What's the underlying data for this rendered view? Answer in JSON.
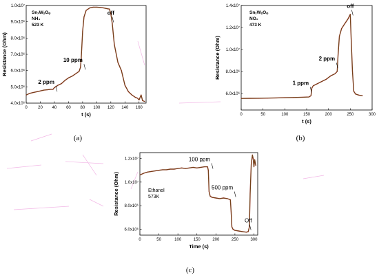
{
  "chart_data": [
    {
      "type": "line",
      "panel": "(a)",
      "info": [
        "SnₓWᵧOᵩ",
        "NH₃",
        "523 K"
      ],
      "xlabel": "t (s)",
      "ylabel": "Resistance (Ohm)",
      "xlim": [
        0,
        170
      ],
      "ylim": [
        4000000,
        10000000
      ],
      "xticks": [
        0,
        20,
        40,
        60,
        80,
        100,
        120,
        140,
        160
      ],
      "xtick_labels": [
        "0",
        "20",
        "40",
        "60",
        "80",
        "100",
        "120",
        "140",
        "160"
      ],
      "yticks": [
        4000000,
        5000000,
        6000000,
        7000000,
        8000000,
        9000000,
        10000000
      ],
      "ytick_labels": [
        "4.0x10⁶",
        "5.0x10⁶",
        "6.0x10⁶",
        "7.0x10⁶",
        "8.0x10⁶",
        "9.0x10⁶",
        "1.0x10⁷"
      ],
      "annotations": [
        {
          "text": "2 ppm",
          "x": 40,
          "y": 5050000
        },
        {
          "text": "10 ppm",
          "x": 80,
          "y": 6400000
        },
        {
          "text": "off",
          "x": 120,
          "y": 9300000
        }
      ],
      "series": [
        {
          "x": [
            0,
            5,
            10,
            15,
            20,
            25,
            30,
            35,
            38,
            40,
            45,
            50,
            55,
            60,
            65,
            70,
            75,
            77,
            78,
            80,
            82,
            85,
            90,
            95,
            100,
            105,
            110,
            115,
            118,
            120,
            122,
            125,
            130,
            135,
            140,
            145,
            150,
            155,
            158,
            160,
            163,
            165,
            168
          ],
          "y": [
            4500000,
            4600000,
            4650000,
            4700000,
            4750000,
            4800000,
            4820000,
            4850000,
            4850000,
            4950000,
            5100000,
            5200000,
            5400000,
            5550000,
            5650000,
            5800000,
            5950000,
            6200000,
            6700000,
            8400000,
            9300000,
            9700000,
            9850000,
            9900000,
            9900000,
            9880000,
            9850000,
            9800000,
            9780000,
            9500000,
            8900000,
            7600000,
            6500000,
            6000000,
            5100000,
            4700000,
            4500000,
            4350000,
            4300000,
            4200000,
            4500000,
            4150000,
            4100000
          ]
        }
      ]
    },
    {
      "type": "line",
      "panel": "(b)",
      "info": [
        "SnₓWᵧOᵩ",
        "NO₂",
        "473 K"
      ],
      "xlabel": "t (s)",
      "ylabel": "Resistance (Ohm)",
      "xlim": [
        0,
        300
      ],
      "ylim": [
        4500000,
        14000000
      ],
      "xticks": [
        0,
        50,
        100,
        150,
        200,
        250,
        300
      ],
      "xtick_labels": [
        "0",
        "50",
        "100",
        "150",
        "200",
        "250",
        "300"
      ],
      "yticks": [
        6000000,
        8000000,
        10000000,
        12000000,
        14000000
      ],
      "ytick_labels": [
        "6.0x10⁶",
        "8.0x10⁶",
        "1.0x10⁷",
        "1.2x10⁷",
        "1.4x10⁷"
      ],
      "annotations": [
        {
          "text": "1 ppm",
          "x": 155,
          "y": 6600000
        },
        {
          "text": "2 ppm",
          "x": 215,
          "y": 8800000
        },
        {
          "text": "off",
          "x": 250,
          "y": 13600000
        }
      ],
      "series": [
        {
          "x": [
            0,
            20,
            40,
            60,
            80,
            100,
            120,
            140,
            155,
            160,
            162,
            165,
            175,
            185,
            195,
            205,
            215,
            220,
            222,
            225,
            230,
            235,
            240,
            245,
            250,
            252,
            255,
            258,
            262,
            270,
            278
          ],
          "y": [
            5550000,
            5560000,
            5570000,
            5580000,
            5600000,
            5620000,
            5640000,
            5660000,
            5680000,
            5800000,
            6500000,
            6700000,
            6900000,
            7100000,
            7300000,
            7600000,
            7800000,
            8000000,
            9500000,
            11200000,
            11900000,
            12200000,
            12500000,
            12800000,
            13200000,
            11000000,
            8000000,
            6200000,
            5950000,
            5850000,
            5800000
          ]
        }
      ]
    },
    {
      "type": "line",
      "panel": "(c)",
      "info": [
        "Ethanol",
        "573K"
      ],
      "xlabel": "Time (s)",
      "ylabel": "Resistance (Ohm)",
      "xlim": [
        0,
        310
      ],
      "ylim": [
        5500000,
        12500000
      ],
      "xticks": [
        0,
        50,
        100,
        150,
        200,
        250,
        300
      ],
      "xtick_labels": [
        "0",
        "50",
        "100",
        "150",
        "200",
        "250",
        "300"
      ],
      "yticks": [
        6000000,
        8000000,
        10000000,
        12000000
      ],
      "ytick_labels": [
        "6.0x10⁶",
        "8.0x10⁶",
        "1.0x10⁷",
        "1.2x10⁷"
      ],
      "annotations": [
        {
          "text": "100 ppm",
          "x": 185,
          "y": 11600000
        },
        {
          "text": "500 ppm",
          "x": 245,
          "y": 9200000
        },
        {
          "text": "Off",
          "x": 285,
          "y": 6400000
        }
      ],
      "series": [
        {
          "x": [
            0,
            10,
            20,
            30,
            40,
            50,
            60,
            70,
            80,
            90,
            100,
            110,
            120,
            130,
            140,
            150,
            160,
            170,
            178,
            180,
            182,
            185,
            190,
            200,
            210,
            220,
            230,
            238,
            240,
            242,
            245,
            250,
            260,
            270,
            280,
            285,
            288,
            290,
            293,
            296,
            298,
            300,
            302,
            305
          ],
          "y": [
            10600000,
            10750000,
            10850000,
            10900000,
            10950000,
            11000000,
            11050000,
            11050000,
            11100000,
            11100000,
            11150000,
            11200000,
            11150000,
            11200000,
            11250000,
            11200000,
            11250000,
            11300000,
            11300000,
            11000000,
            9200000,
            8800000,
            8700000,
            8650000,
            8600000,
            8650000,
            8600000,
            8500000,
            7500000,
            6200000,
            6000000,
            5900000,
            5850000,
            5800000,
            5750000,
            5800000,
            6200000,
            9000000,
            11500000,
            12300000,
            12000000,
            11300000,
            11900000,
            11400000
          ]
        }
      ]
    }
  ],
  "captions": [
    "(a)",
    "(b)",
    "(c)"
  ]
}
